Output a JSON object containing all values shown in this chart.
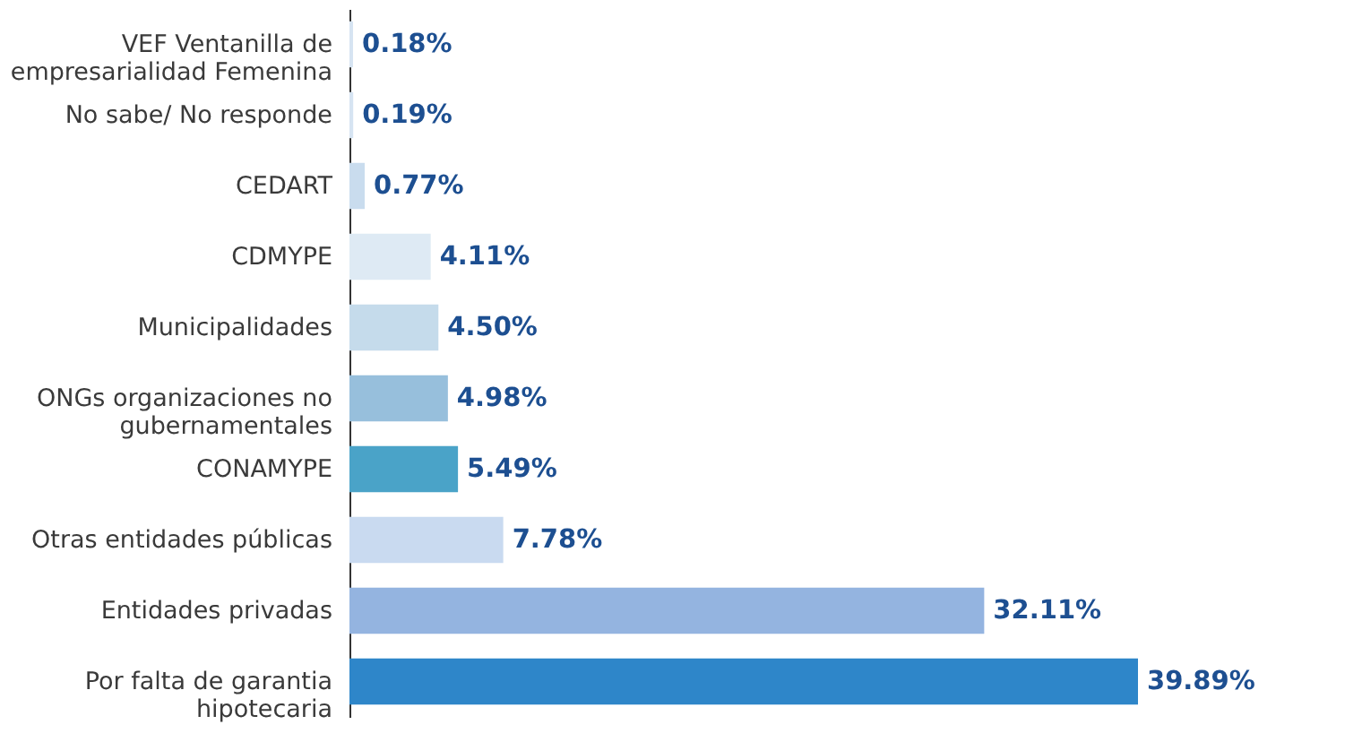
{
  "chart_data": {
    "type": "bar",
    "orientation": "horizontal",
    "categories": [
      "VEF Ventanilla de empresarialidad Femenina",
      "No sabe/ No responde",
      "CEDART",
      "CDMYPE",
      "Municipalidades",
      "ONGs organizaciones no gubernamentales",
      "CONAMYPE",
      "Otras entidades públicas",
      "Entidades privadas",
      "Por falta de garantia hipotecaria"
    ],
    "values": [
      0.18,
      0.19,
      0.77,
      4.11,
      4.5,
      4.98,
      5.49,
      7.78,
      32.11,
      39.89
    ],
    "value_labels": [
      "0.18%",
      "0.19%",
      "0.77%",
      "4.11%",
      "4.50%",
      "4.98%",
      "5.49%",
      "7.78%",
      "32.11%",
      "39.89%"
    ],
    "colors": [
      "#d6e4f2",
      "#d6e4f2",
      "#c9dcee",
      "#deeaf4",
      "#c5dbeb",
      "#97bfdc",
      "#4aa3c8",
      "#c9daf0",
      "#94b4e0",
      "#2e86c9"
    ]
  }
}
